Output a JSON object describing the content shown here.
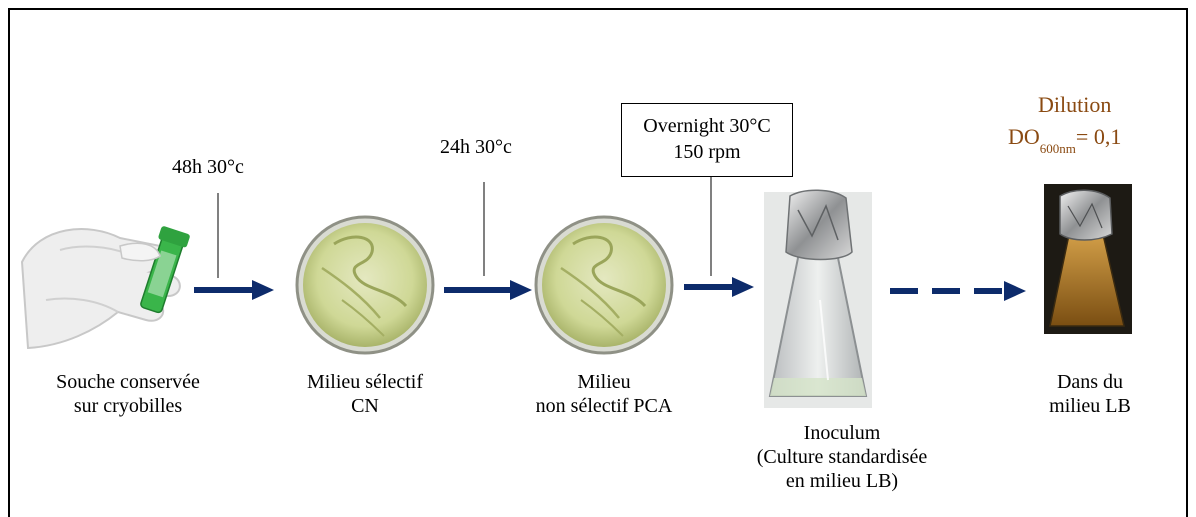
{
  "stages": [
    {
      "label_lines": [
        "Souche conservée",
        "sur cryobilles"
      ],
      "icon": "gloved-hand-vial-icon"
    },
    {
      "label_lines": [
        "Milieu sélectif",
        "CN"
      ],
      "icon": "petri-dish-icon"
    },
    {
      "label_lines": [
        "Milieu",
        "non sélectif PCA"
      ],
      "icon": "petri-dish-icon"
    },
    {
      "label_lines": [
        "Inoculum",
        "(Culture standardisée",
        "en milieu LB)"
      ],
      "icon": "erlenmeyer-flask-icon"
    },
    {
      "label_lines": [
        "Dans du",
        "milieu LB"
      ],
      "icon": "foil-capped-flask-icon"
    }
  ],
  "steps": [
    {
      "condition_lines": [
        "48h 30°c"
      ]
    },
    {
      "condition_lines": [
        "24h 30°c"
      ]
    },
    {
      "condition_lines": [
        "Overnight 30°C",
        "150 rpm"
      ],
      "boxed": true
    }
  ],
  "dilution": {
    "title": "Dilution",
    "measure": "DO",
    "subscript": "600nm",
    "value": "= 0,1"
  },
  "colors": {
    "arrow": "#0d2b6b",
    "dilution_text": "#8a4a12",
    "agar": "#d3dc9e",
    "culture": "#b9822c"
  }
}
